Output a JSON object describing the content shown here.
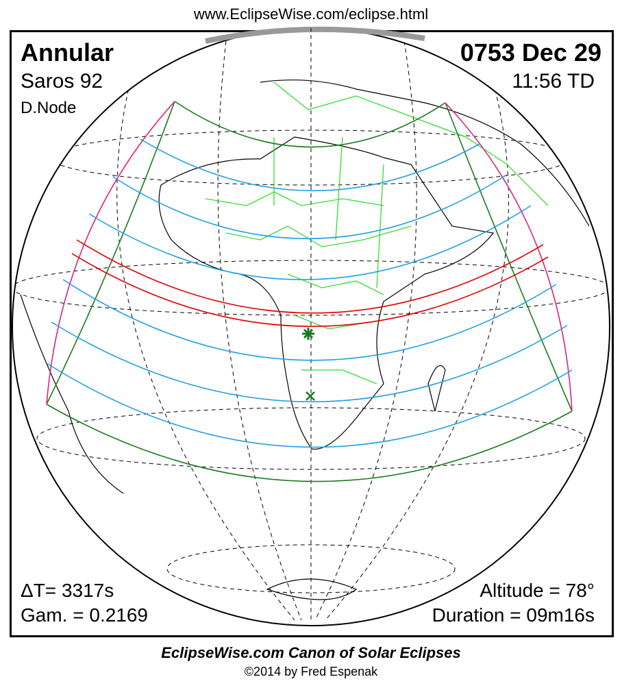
{
  "header": {
    "url": "www.EclipseWise.com/eclipse.html"
  },
  "eclipse": {
    "type": "Annular",
    "saros": "Saros  92",
    "node": "D.Node",
    "date": "0753 Dec 29",
    "time": "11:56 TD",
    "delta_t": "ΔT=   3317s",
    "gamma": "Gam. = 0.2169",
    "altitude": "Altitude = 78°",
    "duration": "Duration = 09m16s"
  },
  "footer": {
    "canon": "EclipseWise.com Canon of Solar Eclipses",
    "copyright": "©2014 by Fred Espenak"
  },
  "colors": {
    "central_path": "#e00000",
    "penumbral_lines": "#1ea0e6",
    "limits": "#1a7a1a",
    "rise_set": "#e0207a",
    "borders": "#33dd33"
  }
}
